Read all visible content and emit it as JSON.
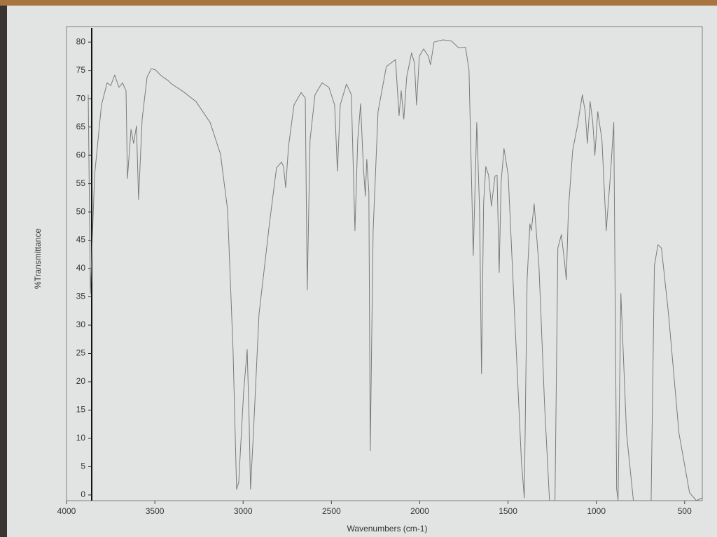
{
  "chart_data": {
    "type": "line",
    "xlabel": "Wavenumbers (cm-1)",
    "ylabel": "%Transmittance",
    "color": "#7a7a7a",
    "xlim": [
      4000,
      400
    ],
    "ylim": [
      -1,
      82
    ],
    "xticks": [
      4000,
      3500,
      3000,
      2500,
      2000,
      1500,
      1000,
      500
    ],
    "yticks": [
      0,
      5,
      10,
      15,
      20,
      25,
      30,
      35,
      40,
      45,
      50,
      55,
      60,
      65,
      70,
      75,
      80
    ],
    "grid": false,
    "x": [
      3877,
      3865,
      3841,
      3802,
      3770,
      3750,
      3727,
      3703,
      3683,
      3663,
      3655,
      3635,
      3620,
      3604,
      3592,
      3572,
      3544,
      3520,
      3497,
      3465,
      3425,
      3405,
      3346,
      3267,
      3187,
      3128,
      3088,
      3057,
      3037,
      3025,
      2997,
      2977,
      2966,
      2958,
      2942,
      2910,
      2851,
      2811,
      2783,
      2771,
      2759,
      2743,
      2712,
      2672,
      2648,
      2637,
      2621,
      2593,
      2553,
      2514,
      2482,
      2466,
      2450,
      2415,
      2387,
      2367,
      2351,
      2335,
      2319,
      2308,
      2300,
      2288,
      2280,
      2264,
      2236,
      2189,
      2137,
      2117,
      2105,
      2090,
      2074,
      2046,
      2030,
      2018,
      2002,
      1978,
      1951,
      1939,
      1919,
      1868,
      1820,
      1780,
      1741,
      1721,
      1697,
      1677,
      1661,
      1650,
      1638,
      1626,
      1610,
      1594,
      1574,
      1562,
      1550,
      1539,
      1523,
      1499,
      1463,
      1424,
      1408,
      1392,
      1376,
      1368,
      1352,
      1325,
      1293,
      1265,
      1234,
      1218,
      1198,
      1182,
      1170,
      1158,
      1134,
      1107,
      1079,
      1063,
      1051,
      1035,
      1020,
      1008,
      992,
      968,
      944,
      920,
      901,
      885,
      877,
      861,
      829,
      790,
      690,
      671,
      651,
      631,
      591,
      532,
      472,
      433,
      401
    ],
    "values": [
      70.7,
      35.6,
      56.5,
      68.9,
      72.8,
      72.3,
      74.2,
      72,
      72.8,
      71.4,
      55.9,
      64.6,
      62.1,
      65.2,
      52.2,
      66.4,
      73.8,
      75.3,
      75.1,
      74.1,
      73.2,
      72.6,
      71.4,
      69.5,
      65.8,
      60.2,
      50.4,
      25.7,
      1,
      2.2,
      18.3,
      25.7,
      13.3,
      1,
      10.9,
      31.9,
      47.9,
      57.8,
      58.8,
      58,
      54.3,
      61.5,
      68.9,
      71.1,
      70.1,
      36.2,
      62.7,
      70.7,
      72.8,
      72,
      68.9,
      57.2,
      68.9,
      72.6,
      70.7,
      46.7,
      62.7,
      69.1,
      57.8,
      52.8,
      59.3,
      53.5,
      7.8,
      46.7,
      67.7,
      75.7,
      76.9,
      67,
      71.4,
      66.4,
      73.8,
      78.1,
      76.3,
      68.9,
      77.5,
      78.8,
      77.5,
      76,
      80,
      80.4,
      80.2,
      79,
      79.1,
      75.1,
      42.3,
      65.8,
      50.4,
      21.4,
      51.6,
      58,
      56.5,
      51,
      56.3,
      56.5,
      39.3,
      55.3,
      61.2,
      56.5,
      31.9,
      5.9,
      -0.5,
      38,
      47.9,
      46.7,
      51.4,
      40.5,
      15.8,
      -1,
      -1,
      43.6,
      46,
      41.7,
      38,
      50.4,
      60.9,
      65.2,
      70.7,
      67.7,
      62.1,
      69.5,
      65.8,
      60,
      67.7,
      62.7,
      46.7,
      56.5,
      65.8,
      1,
      -0.9,
      35.6,
      10.9,
      -1,
      -1,
      40.5,
      44.2,
      43.6,
      31.9,
      10.9,
      0.4,
      -1,
      -0.5
    ]
  }
}
